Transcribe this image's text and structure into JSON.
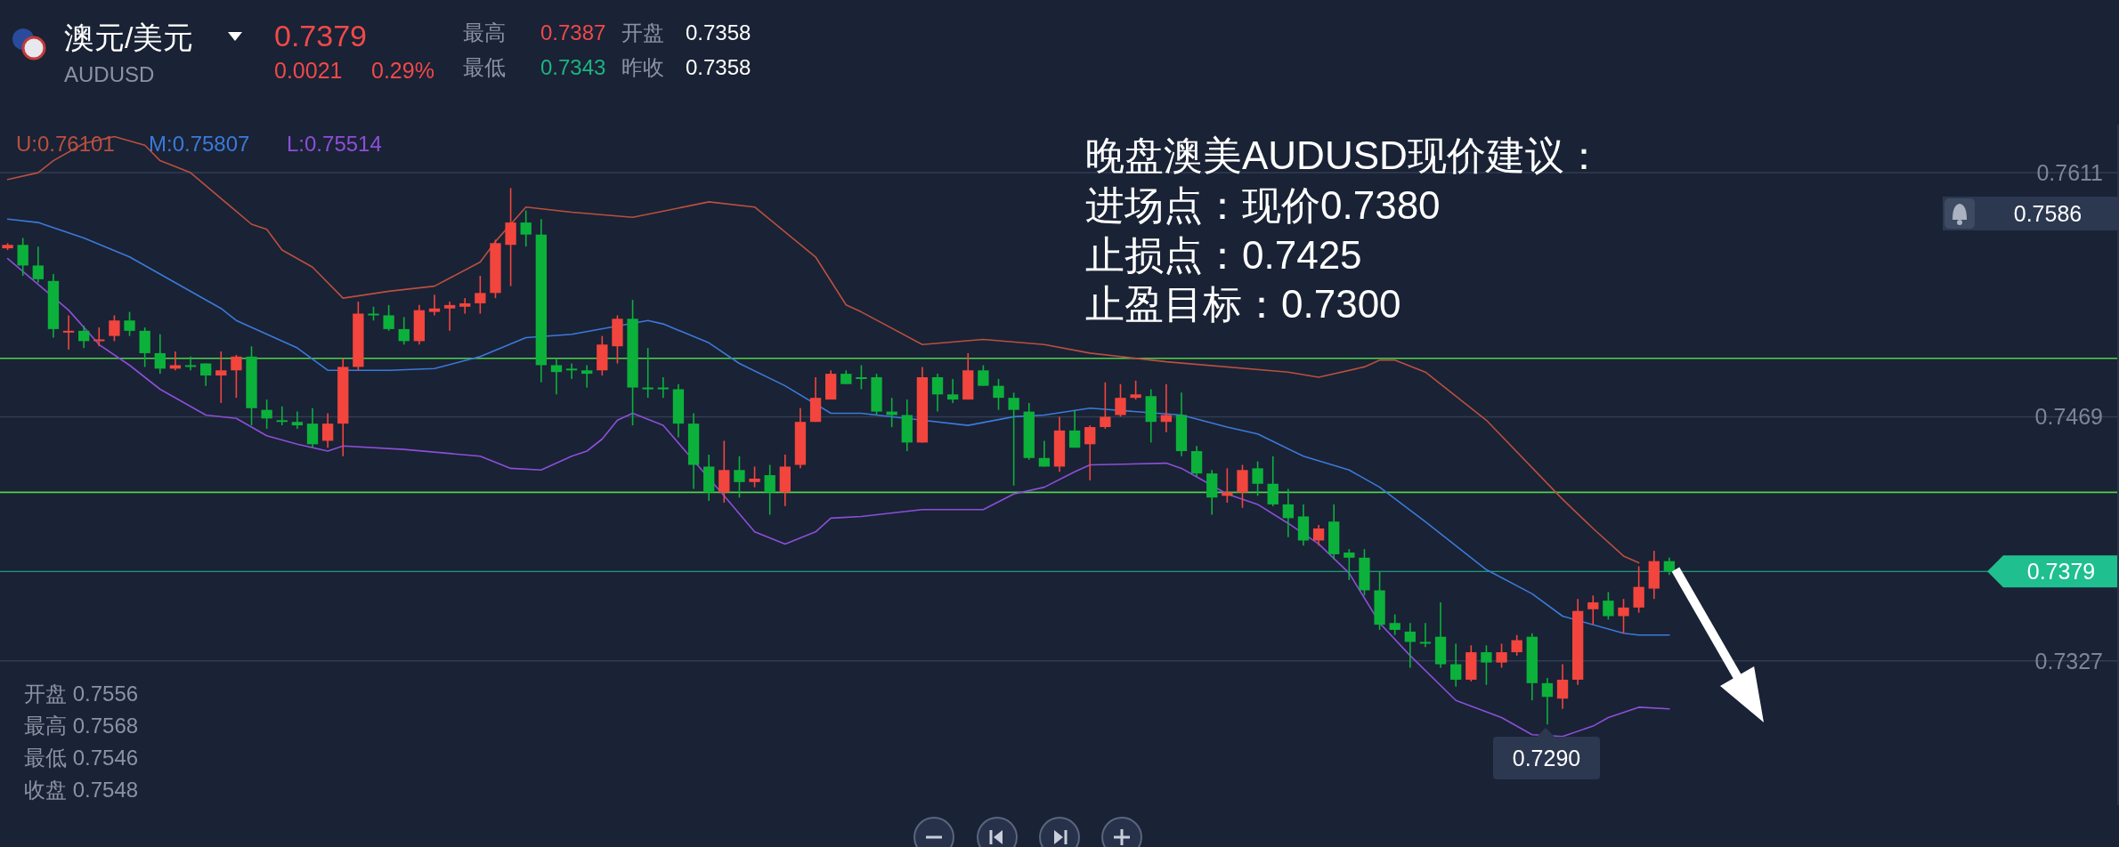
{
  "chart_data": {
    "type": "candlestick",
    "title": "澳元/美元",
    "subtitle": "AUDUSD",
    "categories": [
      null,
      null,
      null,
      null,
      null,
      null,
      null,
      null,
      null,
      null,
      null,
      null,
      null,
      null,
      null,
      null,
      null,
      null,
      null,
      null,
      null,
      null,
      null,
      null,
      null,
      null,
      null,
      null,
      null,
      null,
      null,
      null,
      null,
      null,
      null,
      null,
      null,
      null,
      null,
      null,
      null,
      null,
      null,
      null,
      null,
      null,
      null,
      null,
      null,
      null,
      null,
      null,
      null,
      null,
      null,
      null,
      null,
      null,
      null,
      null,
      null,
      null,
      null,
      null,
      null,
      null,
      null,
      null,
      null,
      null,
      null,
      null,
      null,
      null,
      null,
      null,
      null,
      null,
      null,
      null,
      null,
      null,
      null,
      null,
      null,
      null,
      null,
      null,
      null,
      null,
      null,
      null,
      null,
      null,
      null,
      null,
      null,
      null,
      null,
      null,
      null,
      null,
      null,
      null,
      null,
      null,
      null,
      null,
      null,
      null,
      null,
      null,
      null,
      null,
      null,
      null,
      null,
      null,
      null,
      null,
      null,
      null,
      null,
      null,
      null,
      null,
      null,
      null,
      null,
      null,
      null,
      null,
      null,
      null,
      null,
      null,
      null,
      null,
      null
    ],
    "ohlc": [
      [
        0.7567,
        0.757,
        0.7566,
        0.7569
      ],
      [
        0.7569,
        0.7573,
        0.7551,
        0.7557
      ],
      [
        0.7557,
        0.7568,
        0.7547,
        0.7549
      ],
      [
        0.7548,
        0.7552,
        0.7515,
        0.752
      ],
      [
        0.7518,
        0.7528,
        0.7508,
        0.7519
      ],
      [
        0.7519,
        0.7522,
        0.7509,
        0.7513
      ],
      [
        0.7513,
        0.7521,
        0.751,
        0.7514
      ],
      [
        0.7516,
        0.7528,
        0.7513,
        0.7525
      ],
      [
        0.7525,
        0.753,
        0.7516,
        0.7519
      ],
      [
        0.7519,
        0.7521,
        0.7498,
        0.7506
      ],
      [
        0.7506,
        0.7517,
        0.7494,
        0.7497
      ],
      [
        0.7497,
        0.7507,
        0.7496,
        0.7499
      ],
      [
        0.7499,
        0.7504,
        0.7496,
        0.7498
      ],
      [
        0.75,
        0.75,
        0.7487,
        0.7493
      ],
      [
        0.7493,
        0.7507,
        0.7477,
        0.7496
      ],
      [
        0.7496,
        0.7505,
        0.748,
        0.7504
      ],
      [
        0.7504,
        0.751,
        0.7464,
        0.7474
      ],
      [
        0.7473,
        0.7479,
        0.7462,
        0.7468
      ],
      [
        0.7467,
        0.7475,
        0.7464,
        0.7466
      ],
      [
        0.7466,
        0.7472,
        0.7462,
        0.7464
      ],
      [
        0.7465,
        0.7474,
        0.7451,
        0.7453
      ],
      [
        0.7455,
        0.7471,
        0.7451,
        0.7465
      ],
      [
        0.7465,
        0.7503,
        0.7446,
        0.7498
      ],
      [
        0.7498,
        0.7536,
        0.7496,
        0.7529
      ],
      [
        0.7529,
        0.7533,
        0.7525,
        0.7528
      ],
      [
        0.7528,
        0.7534,
        0.7519,
        0.752
      ],
      [
        0.752,
        0.7527,
        0.7511,
        0.7513
      ],
      [
        0.7513,
        0.7534,
        0.7511,
        0.7531
      ],
      [
        0.753,
        0.754,
        0.7528,
        0.7532
      ],
      [
        0.7532,
        0.7536,
        0.7519,
        0.7534
      ],
      [
        0.7533,
        0.7538,
        0.7529,
        0.7535
      ],
      [
        0.7535,
        0.7551,
        0.7529,
        0.7541
      ],
      [
        0.7541,
        0.7572,
        0.7538,
        0.757
      ],
      [
        0.7569,
        0.7602,
        0.7545,
        0.7582
      ],
      [
        0.7582,
        0.7589,
        0.7568,
        0.7575
      ],
      [
        0.7575,
        0.7584,
        0.7489,
        0.7499
      ],
      [
        0.7499,
        0.7503,
        0.7482,
        0.7495
      ],
      [
        0.7497,
        0.75,
        0.7491,
        0.7496
      ],
      [
        0.7496,
        0.7499,
        0.7486,
        0.7494
      ],
      [
        0.7496,
        0.7516,
        0.7493,
        0.7511
      ],
      [
        0.751,
        0.7528,
        0.75,
        0.7526
      ],
      [
        0.7526,
        0.7537,
        0.7464,
        0.7486
      ],
      [
        0.7486,
        0.7509,
        0.748,
        0.7485
      ],
      [
        0.7486,
        0.7492,
        0.748,
        0.7485
      ],
      [
        0.7485,
        0.7488,
        0.7457,
        0.7465
      ],
      [
        0.7465,
        0.7471,
        0.7427,
        0.7441
      ],
      [
        0.744,
        0.7447,
        0.742,
        0.7425
      ],
      [
        0.7425,
        0.7455,
        0.7419,
        0.7438
      ],
      [
        0.7438,
        0.7446,
        0.7422,
        0.7431
      ],
      [
        0.7431,
        0.744,
        0.7428,
        0.7433
      ],
      [
        0.7435,
        0.7441,
        0.7412,
        0.7425
      ],
      [
        0.7425,
        0.7447,
        0.7417,
        0.744
      ],
      [
        0.7441,
        0.7474,
        0.7439,
        0.7466
      ],
      [
        0.7466,
        0.7492,
        0.7466,
        0.748
      ],
      [
        0.7479,
        0.7496,
        0.7479,
        0.7494
      ],
      [
        0.7494,
        0.7496,
        0.7488,
        0.7488
      ],
      [
        0.7492,
        0.7499,
        0.7485,
        0.7491
      ],
      [
        0.7492,
        0.7494,
        0.747,
        0.7472
      ],
      [
        0.7472,
        0.748,
        0.7463,
        0.747
      ],
      [
        0.747,
        0.7479,
        0.7449,
        0.7454
      ],
      [
        0.7454,
        0.7498,
        0.7454,
        0.7492
      ],
      [
        0.7492,
        0.7494,
        0.7472,
        0.7482
      ],
      [
        0.7482,
        0.7491,
        0.7477,
        0.7479
      ],
      [
        0.7479,
        0.7506,
        0.7479,
        0.7496
      ],
      [
        0.7496,
        0.7499,
        0.7487,
        0.7487
      ],
      [
        0.7487,
        0.7491,
        0.7473,
        0.748
      ],
      [
        0.748,
        0.7483,
        0.7429,
        0.7473
      ],
      [
        0.7472,
        0.7477,
        0.7444,
        0.7445
      ],
      [
        0.7445,
        0.7455,
        0.744,
        0.744
      ],
      [
        0.744,
        0.7469,
        0.7437,
        0.7461
      ],
      [
        0.7461,
        0.7473,
        0.7451,
        0.7451
      ],
      [
        0.7453,
        0.7464,
        0.7432,
        0.7463
      ],
      [
        0.7463,
        0.7489,
        0.7462,
        0.7469
      ],
      [
        0.747,
        0.7488,
        0.7469,
        0.748
      ],
      [
        0.748,
        0.749,
        0.7479,
        0.7482
      ],
      [
        0.7481,
        0.7485,
        0.7454,
        0.7466
      ],
      [
        0.7466,
        0.7488,
        0.746,
        0.747
      ],
      [
        0.747,
        0.7483,
        0.7446,
        0.7449
      ],
      [
        0.7449,
        0.7452,
        0.7434,
        0.7436
      ],
      [
        0.7436,
        0.7438,
        0.7412,
        0.7422
      ],
      [
        0.7423,
        0.7439,
        0.7419,
        0.7425
      ],
      [
        0.7425,
        0.7441,
        0.7416,
        0.7438
      ],
      [
        0.7439,
        0.7443,
        0.7423,
        0.743
      ],
      [
        0.743,
        0.7446,
        0.7417,
        0.7418
      ],
      [
        0.7418,
        0.7427,
        0.7399,
        0.741
      ],
      [
        0.7411,
        0.7418,
        0.7394,
        0.7397
      ],
      [
        0.7397,
        0.7406,
        0.7394,
        0.7404
      ],
      [
        0.7408,
        0.7418,
        0.7386,
        0.7389
      ],
      [
        0.739,
        0.7392,
        0.7374,
        0.7387
      ],
      [
        0.7387,
        0.7392,
        0.7365,
        0.7368
      ],
      [
        0.7368,
        0.7379,
        0.7345,
        0.7348
      ],
      [
        0.7349,
        0.7354,
        0.7342,
        0.7345
      ],
      [
        0.7344,
        0.7349,
        0.7323,
        0.7338
      ],
      [
        0.7338,
        0.7349,
        0.7335,
        0.7337
      ],
      [
        0.7341,
        0.7361,
        0.7323,
        0.7325
      ],
      [
        0.7325,
        0.7337,
        0.7312,
        0.7316
      ],
      [
        0.7316,
        0.7336,
        0.7315,
        0.7332
      ],
      [
        0.7332,
        0.7336,
        0.7313,
        0.7326
      ],
      [
        0.7326,
        0.7337,
        0.7323,
        0.7332
      ],
      [
        0.7332,
        0.7342,
        0.733,
        0.7339
      ],
      [
        0.7341,
        0.7343,
        0.7304,
        0.7314
      ],
      [
        0.7314,
        0.7317,
        0.729,
        0.7306
      ],
      [
        0.7305,
        0.7325,
        0.7299,
        0.7316
      ],
      [
        0.7316,
        0.7363,
        0.7313,
        0.7356
      ],
      [
        0.7357,
        0.7365,
        0.7348,
        0.7361
      ],
      [
        0.7362,
        0.7367,
        0.7351,
        0.7353
      ],
      [
        0.7353,
        0.7363,
        0.7343,
        0.7358
      ],
      [
        0.7358,
        0.7382,
        0.7355,
        0.737
      ],
      [
        0.7369,
        0.7391,
        0.7363,
        0.7385
      ],
      [
        0.7385,
        0.7387,
        0.7377,
        0.7379
      ],
      null,
      null,
      null,
      null,
      null,
      null,
      null,
      null,
      null,
      null,
      null,
      null,
      null,
      null,
      null,
      null,
      null,
      null,
      null,
      null,
      null,
      null,
      null,
      null,
      null,
      null,
      null,
      null,
      null
    ],
    "colors": [
      "#f2453d",
      "#0bb13b",
      "#0bb13b",
      "#0bb13b",
      "#f2453d",
      "#0bb13b",
      "#f2453d",
      "#f2453d",
      "#0bb13b",
      "#0bb13b",
      "#0bb13b",
      "#f2453d",
      "#0bb13b",
      "#0bb13b",
      "#f2453d",
      "#f2453d",
      "#0bb13b",
      "#0bb13b",
      "#0bb13b",
      "#0bb13b",
      "#0bb13b",
      "#f2453d",
      "#f2453d",
      "#f2453d",
      "#0bb13b",
      "#0bb13b",
      "#0bb13b",
      "#f2453d",
      "#f2453d",
      "#f2453d",
      "#f2453d",
      "#f2453d",
      "#f2453d",
      "#f2453d",
      "#0bb13b",
      "#0bb13b",
      "#0bb13b",
      "#0bb13b",
      "#0bb13b",
      "#f2453d",
      "#f2453d",
      "#0bb13b",
      "#0bb13b",
      "#0bb13b",
      "#0bb13b",
      "#0bb13b",
      "#0bb13b",
      "#f2453d",
      "#0bb13b",
      "#f2453d",
      "#0bb13b",
      "#f2453d",
      "#f2453d",
      "#f2453d",
      "#f2453d",
      "#0bb13b",
      "#0bb13b",
      "#0bb13b",
      "#0bb13b",
      "#0bb13b",
      "#f2453d",
      "#0bb13b",
      "#0bb13b",
      "#f2453d",
      "#0bb13b",
      "#0bb13b",
      "#0bb13b",
      "#0bb13b",
      "#0bb13b",
      "#f2453d",
      "#0bb13b",
      "#f2453d",
      "#f2453d",
      "#f2453d",
      "#f2453d",
      "#0bb13b",
      "#f2453d",
      "#0bb13b",
      "#0bb13b",
      "#0bb13b",
      "#f2453d",
      "#f2453d",
      "#0bb13b",
      "#0bb13b",
      "#0bb13b",
      "#0bb13b",
      "#f2453d",
      "#0bb13b",
      "#0bb13b",
      "#0bb13b",
      "#0bb13b",
      "#0bb13b",
      "#0bb13b",
      "#0bb13b",
      "#0bb13b",
      "#0bb13b",
      "#f2453d",
      "#0bb13b",
      "#f2453d",
      "#f2453d",
      "#0bb13b",
      "#0bb13b",
      "#f2453d",
      "#f2453d",
      "#f2453d",
      "#0bb13b",
      "#f2453d",
      "#f2453d",
      "#f2453d",
      "#0bb13b",
      null,
      null,
      null,
      null,
      null,
      null,
      null,
      null,
      null,
      null,
      null,
      null,
      null,
      null,
      null,
      null,
      null,
      null,
      null,
      null,
      null,
      null,
      null,
      null,
      null,
      null,
      null,
      null,
      null
    ],
    "series": [
      {
        "type": "line",
        "name": "U:0.76101",
        "color": "#b9503f",
        "values": [
          0.7607,
          null,
          0.7611,
          0.7618,
          null,
          0.7628,
          null,
          0.7632,
          null,
          0.7627,
          0.7618,
          null,
          0.7611,
          null,
          0.7596,
          null,
          0.7581,
          0.7578,
          0.7566,
          null,
          0.7556,
          null,
          0.7538,
          null,
          null,
          0.7542,
          null,
          null,
          0.7545,
          null,
          null,
          0.7559,
          0.7571,
          null,
          0.7591,
          null,
          null,
          0.7588,
          null,
          null,
          null,
          0.7585,
          null,
          null,
          null,
          null,
          0.7594,
          null,
          null,
          0.7591,
          null,
          null,
          null,
          0.7562,
          null,
          0.7534,
          0.753,
          null,
          null,
          null,
          0.7511,
          null,
          null,
          null,
          0.7514,
          null,
          null,
          null,
          0.7511,
          null,
          null,
          0.7506,
          null,
          0.7504,
          null,
          null,
          0.7501,
          null,
          null,
          null,
          null,
          null,
          null,
          null,
          0.7495,
          null,
          0.7492,
          null,
          null,
          0.7498,
          0.7502,
          0.7502,
          null,
          0.7495,
          null,
          null,
          null,
          0.7467,
          null,
          null,
          null,
          null,
          0.7421,
          null,
          0.7404,
          null,
          0.7388,
          0.7384,
          null,
          null,
          null,
          null,
          null,
          null,
          null,
          null,
          null,
          null,
          null,
          null,
          null,
          null,
          null,
          null,
          null,
          null,
          null,
          null,
          null,
          null,
          null,
          null,
          null,
          null,
          null,
          null,
          null,
          null,
          null
        ]
      },
      {
        "type": "line",
        "name": "M:0.75807",
        "color": "#3b7ad9",
        "values": [
          0.7584,
          null,
          0.7582,
          null,
          null,
          0.7573,
          null,
          null,
          0.7562,
          null,
          null,
          0.7547,
          null,
          null,
          0.7532,
          0.7525,
          null,
          null,
          null,
          0.7509,
          null,
          0.7496,
          null,
          null,
          null,
          0.7496,
          null,
          null,
          0.7497,
          null,
          null,
          0.7504,
          null,
          null,
          0.7515,
          null,
          null,
          0.7517,
          null,
          null,
          null,
          null,
          0.7525,
          0.7523,
          null,
          null,
          0.7512,
          null,
          0.75,
          null,
          null,
          0.7487,
          null,
          null,
          0.7471,
          null,
          0.7471,
          0.747,
          null,
          null,
          null,
          null,
          null,
          0.7464,
          null,
          null,
          0.7469,
          null,
          0.747,
          null,
          null,
          0.7474,
          null,
          null,
          null,
          null,
          null,
          0.747,
          null,
          null,
          0.7463,
          null,
          0.7459,
          null,
          null,
          0.7446,
          null,
          null,
          0.7438,
          null,
          0.7428,
          null,
          null,
          0.7408,
          null,
          null,
          null,
          0.738,
          null,
          null,
          0.7366,
          null,
          0.7353,
          null,
          null,
          null,
          0.7343,
          0.7342,
          null,
          0.7342,
          null,
          null,
          null,
          null,
          null,
          null,
          null,
          null,
          null,
          null,
          null,
          null,
          null,
          null,
          null,
          null,
          null,
          null,
          null,
          null,
          null,
          null,
          null,
          null,
          null,
          null,
          null,
          null,
          null
        ]
      },
      {
        "type": "line",
        "name": "L:0.75514",
        "color": "#8c4fd9",
        "values": [
          0.7561,
          null,
          null,
          null,
          0.7531,
          null,
          0.7511,
          null,
          0.7499,
          null,
          0.7485,
          null,
          null,
          0.747,
          null,
          0.7468,
          null,
          0.7458,
          null,
          0.7453,
          null,
          0.7449,
          0.7452,
          null,
          null,
          null,
          0.745,
          null,
          null,
          null,
          null,
          0.7446,
          null,
          0.7439,
          null,
          0.7438,
          null,
          0.7446,
          0.7449,
          0.7456,
          0.7467,
          0.7471,
          null,
          0.7464,
          null,
          null,
          null,
          0.7423,
          null,
          0.7402,
          null,
          0.7395,
          null,
          0.7402,
          0.741,
          null,
          0.7411,
          null,
          null,
          null,
          0.7415,
          null,
          null,
          null,
          0.7415,
          null,
          0.7424,
          null,
          0.7428,
          null,
          0.7437,
          0.7441,
          null,
          null,
          null,
          null,
          0.7442,
          0.7439,
          0.7434,
          null,
          0.7424,
          null,
          0.7418,
          null,
          0.7407,
          null,
          0.7395,
          null,
          0.7378,
          null,
          0.7349,
          null,
          0.733,
          null,
          null,
          0.7304,
          null,
          null,
          0.7294,
          null,
          0.7284,
          null,
          0.7283,
          null,
          0.7289,
          0.7294,
          null,
          0.73,
          null,
          0.7299,
          null,
          null,
          null,
          null,
          null,
          null,
          null,
          null,
          null,
          null,
          null,
          null,
          null,
          null,
          null,
          null,
          null,
          null,
          null,
          null,
          null,
          null,
          null,
          null,
          null,
          null,
          null,
          null,
          null
        ]
      }
    ],
    "ylim": [
      0.7243,
      0.7639
    ],
    "yticks": [
      0.7611,
      0.7469,
      0.7327
    ],
    "tick_labels": "y",
    "grid": "y",
    "legend": "top left",
    "ref_lines": [
      {
        "axis": "y",
        "value": 0.7503,
        "color": "#4fd14a"
      },
      {
        "axis": "y",
        "value": 0.7425,
        "color": "#4fd14a"
      },
      {
        "axis": "y",
        "value": 0.7379,
        "label": "0.7379",
        "color": "#1fbf8f"
      }
    ],
    "annotations": [
      "0.7379",
      "0.0021",
      "0.29%",
      "最高",
      "0.7387",
      "开盘",
      "0.7358",
      "最低",
      "0.7343",
      "昨收",
      "0.7358",
      "晚盘澳美AUDUSD现价建议：",
      "进场点：现价0.7380",
      "止损点：0.7425",
      "止盈目标：0.7300",
      "开盘 0.7556",
      "最高 0.7568",
      "最低 0.7546",
      "收盘 0.7548",
      "0.7586",
      "0.7290"
    ]
  }
}
